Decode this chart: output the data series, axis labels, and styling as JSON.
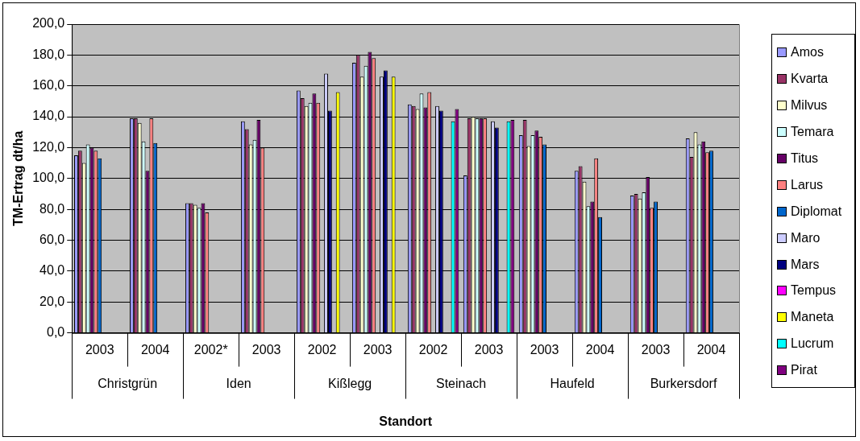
{
  "chart_data": {
    "type": "bar",
    "xlabel": "Standort",
    "ylabel": "TM-Ertrag dt/ha",
    "categories": [
      "2003",
      "2004",
      "2002*",
      "2003",
      "2002",
      "2003",
      "2002",
      "2003",
      "2003",
      "2004",
      "2003",
      "2004"
    ],
    "annotations": [
      "Christgrün",
      "Iden",
      "Kißlegg",
      "Steinach",
      "Haufeld",
      "Burkersdorf"
    ],
    "series": [
      {
        "name": "Amos",
        "color": "#9999ff",
        "values": [
          115,
          139,
          84,
          137,
          157,
          175,
          148,
          102,
          128,
          105,
          89,
          126
        ]
      },
      {
        "name": "Kvarta",
        "color": "#993366",
        "values": [
          118,
          139,
          84,
          132,
          152,
          180,
          147,
          139,
          138,
          108,
          90,
          114
        ]
      },
      {
        "name": "Milvus",
        "color": "#ffffcc",
        "values": [
          110,
          136,
          83,
          122,
          147,
          166,
          145,
          140,
          121,
          98,
          87,
          130
        ]
      },
      {
        "name": "Temara",
        "color": "#ccffff",
        "values": [
          122,
          124,
          81,
          125,
          149,
          173,
          155,
          139,
          128,
          82,
          91,
          122
        ]
      },
      {
        "name": "Titus",
        "color": "#660066",
        "values": [
          120,
          105,
          84,
          138,
          155,
          182,
          146,
          139,
          131,
          85,
          101,
          124
        ]
      },
      {
        "name": "Larus",
        "color": "#ff8080",
        "values": [
          118,
          139,
          78,
          120,
          149,
          178,
          156,
          139,
          127,
          113,
          81,
          117
        ]
      },
      {
        "name": "Diplomat",
        "color": "#0066cc",
        "values": [
          113,
          123,
          null,
          null,
          null,
          null,
          null,
          null,
          122,
          75,
          85,
          118
        ]
      },
      {
        "name": "Maro",
        "color": "#ccccff",
        "values": [
          null,
          null,
          null,
          null,
          168,
          166,
          147,
          137,
          null,
          null,
          null,
          null
        ]
      },
      {
        "name": "Mars",
        "color": "#000080",
        "values": [
          null,
          null,
          null,
          null,
          144,
          170,
          144,
          133,
          null,
          null,
          null,
          null
        ]
      },
      {
        "name": "Tempus",
        "color": "#ff00ff",
        "values": [
          null,
          null,
          null,
          null,
          null,
          null,
          null,
          null,
          null,
          null,
          null,
          null
        ]
      },
      {
        "name": "Maneta",
        "color": "#ffff00",
        "values": [
          null,
          null,
          null,
          null,
          156,
          166,
          null,
          null,
          null,
          null,
          null,
          null
        ]
      },
      {
        "name": "Lucrum",
        "color": "#00ffff",
        "values": [
          null,
          null,
          null,
          null,
          null,
          null,
          137,
          137,
          null,
          null,
          null,
          null
        ]
      },
      {
        "name": "Pirat",
        "color": "#800080",
        "values": [
          null,
          null,
          null,
          null,
          null,
          null,
          145,
          138,
          null,
          null,
          null,
          null
        ]
      }
    ],
    "ylim": [
      0,
      200
    ],
    "yticks": [
      {
        "value": 0,
        "label": "0,0"
      },
      {
        "value": 20,
        "label": "20,0"
      },
      {
        "value": 40,
        "label": "40,0"
      },
      {
        "value": 60,
        "label": "60,0"
      },
      {
        "value": 80,
        "label": "80,0"
      },
      {
        "value": 100,
        "label": "100,0"
      },
      {
        "value": 120,
        "label": "120,0"
      },
      {
        "value": 140,
        "label": "140,0"
      },
      {
        "value": 160,
        "label": "160,0"
      },
      {
        "value": 180,
        "label": "180,0"
      },
      {
        "value": 200,
        "label": "200,0"
      }
    ],
    "grid": "y",
    "legend": "right"
  }
}
